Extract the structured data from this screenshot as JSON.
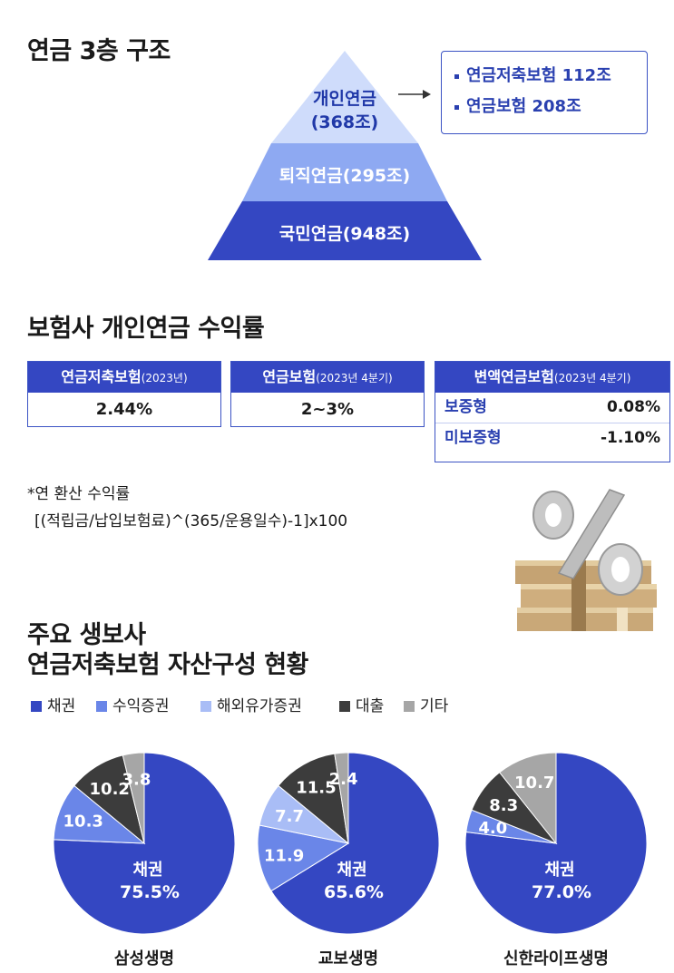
{
  "section1": {
    "title": "연금 3층 구조",
    "pyramid": {
      "top_line1": "개인연금",
      "top_line2": "(368조)",
      "middle": "퇴직연금(295조)",
      "bottom": "국민연금(948조)",
      "colors": [
        "#cfdcfb",
        "#8ea9f2",
        "#3447c2"
      ]
    },
    "callout": [
      "연금저축보험 112조",
      "연금보험 208조"
    ]
  },
  "section2": {
    "title": "보험사 개인연금 수익률",
    "box1": {
      "name": "연금저축보험",
      "period": "(2023년)",
      "value": "2.44%"
    },
    "box2": {
      "name": "연금보험",
      "period": "(2023년 4분기)",
      "value": "2~3%"
    },
    "box3": {
      "name": "변액연금보험",
      "period": "(2023년 4분기)",
      "rows": [
        {
          "label": "보증형",
          "value": "0.08%"
        },
        {
          "label": "미보증형",
          "value": "-1.10%"
        }
      ]
    },
    "note_line1": "*연 환산 수익률",
    "note_line2": "[(적립금/납입보험료)^(365/운용일수)-1]x100"
  },
  "section3": {
    "title_line1": "주요 생보사",
    "title_line2": "연금저축보험 자산구성 현황"
  },
  "chart_data": {
    "type": "pie",
    "legend": [
      {
        "name": "채권",
        "color": "#3447c2"
      },
      {
        "name": "수익증권",
        "color": "#6a86e8"
      },
      {
        "name": "해외유가증권",
        "color": "#a9bdf6"
      },
      {
        "name": "대출",
        "color": "#3c3c3c"
      },
      {
        "name": "기타",
        "color": "#a6a6a6"
      }
    ],
    "charts": [
      {
        "company": "삼성생명",
        "main_label": "채권",
        "main_value": "75.5%",
        "slices": [
          {
            "category": "채권",
            "value": 75.5,
            "label": ""
          },
          {
            "category": "수익증권",
            "value": 10.3,
            "label": "10.3"
          },
          {
            "category": "대출",
            "value": 10.2,
            "label": "10.2"
          },
          {
            "category": "기타",
            "value": 3.8,
            "label": "3.8"
          }
        ]
      },
      {
        "company": "교보생명",
        "main_label": "채권",
        "main_value": "65.6%",
        "slices": [
          {
            "category": "채권",
            "value": 65.6,
            "label": ""
          },
          {
            "category": "수익증권",
            "value": 11.9,
            "label": "11.9"
          },
          {
            "category": "해외유가증권",
            "value": 7.7,
            "label": "7.7"
          },
          {
            "category": "대출",
            "value": 11.5,
            "label": "11.5"
          },
          {
            "category": "기타",
            "value": 2.4,
            "label": "2.4"
          }
        ]
      },
      {
        "company": "신한라이프생명",
        "main_label": "채권",
        "main_value": "77.0%",
        "slices": [
          {
            "category": "채권",
            "value": 77.0,
            "label": ""
          },
          {
            "category": "수익증권",
            "value": 4.0,
            "label": "4.0"
          },
          {
            "category": "대출",
            "value": 8.3,
            "label": "8.3"
          },
          {
            "category": "기타",
            "value": 10.7,
            "label": "10.7"
          }
        ]
      }
    ]
  }
}
